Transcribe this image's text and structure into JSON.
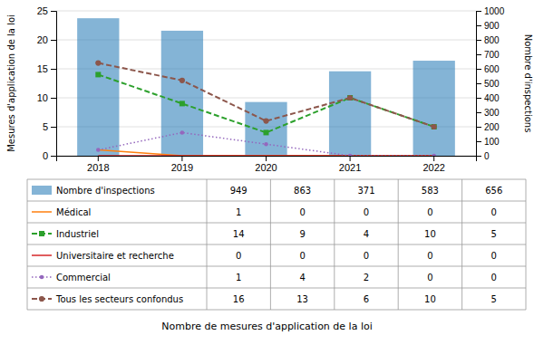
{
  "chart_data": {
    "type": "bar",
    "categories": [
      "2018",
      "2019",
      "2020",
      "2021",
      "2022"
    ],
    "xlabel": "Nombre de mesures d'application de la loi",
    "ylabel": "Mesures d'application de la loi",
    "y2label": "Nombre d'inspections",
    "ylim": [
      0,
      25
    ],
    "yticks": [
      0,
      5,
      10,
      15,
      20,
      25
    ],
    "y2lim": [
      0,
      1000
    ],
    "y2ticks": [
      0,
      100,
      200,
      300,
      400,
      500,
      600,
      700,
      800,
      900,
      1000
    ],
    "grid": true,
    "series": [
      {
        "name": "Nombre d'inspections",
        "type": "bar",
        "axis": "y2",
        "values": [
          949,
          863,
          371,
          583,
          656
        ]
      },
      {
        "name": "Médical",
        "type": "line",
        "line_style": "solid",
        "values": [
          1,
          0,
          0,
          0,
          0
        ]
      },
      {
        "name": "Industriel",
        "type": "line",
        "line_style": "dashed",
        "marker": "square",
        "values": [
          14,
          9,
          4,
          10,
          5
        ]
      },
      {
        "name": "Universitaire et recherche",
        "type": "line",
        "line_style": "solid",
        "values": [
          0,
          0,
          0,
          0,
          0
        ]
      },
      {
        "name": "Commercial",
        "type": "line",
        "line_style": "dotted",
        "marker": "point",
        "values": [
          1,
          4,
          2,
          0,
          0
        ]
      },
      {
        "name": "Tous les secteurs confondus",
        "type": "line",
        "line_style": "dashed",
        "marker": "circle",
        "values": [
          16,
          13,
          6,
          10,
          5
        ]
      }
    ]
  }
}
